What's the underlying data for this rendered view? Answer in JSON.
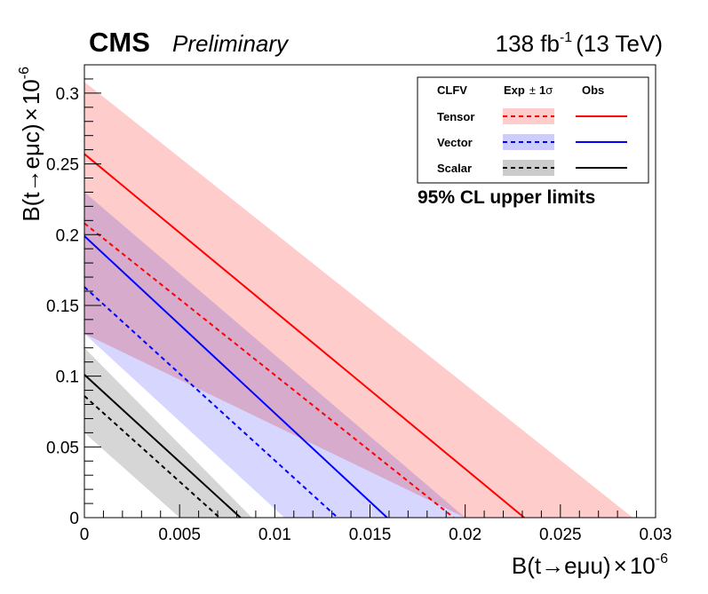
{
  "header": {
    "experiment": "CMS",
    "status": "Preliminary",
    "lumi": "138 fb",
    "lumi_exp": "-1",
    "energy": "(13 TeV)"
  },
  "legend": {
    "col_model": "CLFV",
    "col_exp": "Exp",
    "col_pm": "±",
    "col_one": "1",
    "col_sigma": "σ",
    "col_obs": "Obs"
  },
  "annotation": "95% CL upper limits",
  "colors": {
    "tensor_line": "#ff0000",
    "tensor_band": "#ffcccc",
    "vector_line": "#0000ff",
    "vector_band": "#ccccff",
    "scalar_line": "#000000",
    "scalar_band": "#cccccc"
  },
  "chart_data": {
    "type": "line",
    "title": "",
    "xlabel": {
      "main": "B(t→eμu)",
      "times": "×",
      "base": "10",
      "exp": "-6"
    },
    "ylabel": {
      "main": "B(t→eμc)",
      "times": "×",
      "base": "10",
      "exp": "-6"
    },
    "xlim": [
      0,
      0.03
    ],
    "ylim": [
      0,
      0.32
    ],
    "xticks": [
      0,
      0.005,
      0.01,
      0.015,
      0.02,
      0.025,
      0.03
    ],
    "xtick_labels": [
      "0",
      "0.005",
      "0.01",
      "0.015",
      "0.02",
      "0.025",
      "0.03"
    ],
    "yticks": [
      0,
      0.05,
      0.1,
      0.15,
      0.2,
      0.25,
      0.3
    ],
    "ytick_labels": [
      "0",
      "0.05",
      "0.1",
      "0.15",
      "0.2",
      "0.25",
      "0.3"
    ],
    "series": [
      {
        "name": "Tensor",
        "key": "tensor",
        "obs": {
          "y0": 0.257,
          "x0": 0.0231
        },
        "exp": {
          "y0": 0.208,
          "x0": 0.0194
        },
        "band_hi": {
          "y0": 0.308,
          "x0": 0.0288
        },
        "band_lo": {
          "y0": 0.13,
          "x0": 0.02
        }
      },
      {
        "name": "Vector",
        "key": "vector",
        "obs": {
          "y0": 0.199,
          "x0": 0.0159
        },
        "exp": {
          "y0": 0.163,
          "x0": 0.0133
        },
        "band_hi": {
          "y0": 0.23,
          "x0": 0.02
        },
        "band_lo": {
          "y0": 0.13,
          "x0": 0.0105
        }
      },
      {
        "name": "Scalar",
        "key": "scalar",
        "obs": {
          "y0": 0.101,
          "x0": 0.0082
        },
        "exp": {
          "y0": 0.086,
          "x0": 0.0071
        },
        "band_hi": {
          "y0": 0.12,
          "x0": 0.0088
        },
        "band_lo": {
          "y0": 0.06,
          "x0": 0.005
        }
      }
    ]
  }
}
